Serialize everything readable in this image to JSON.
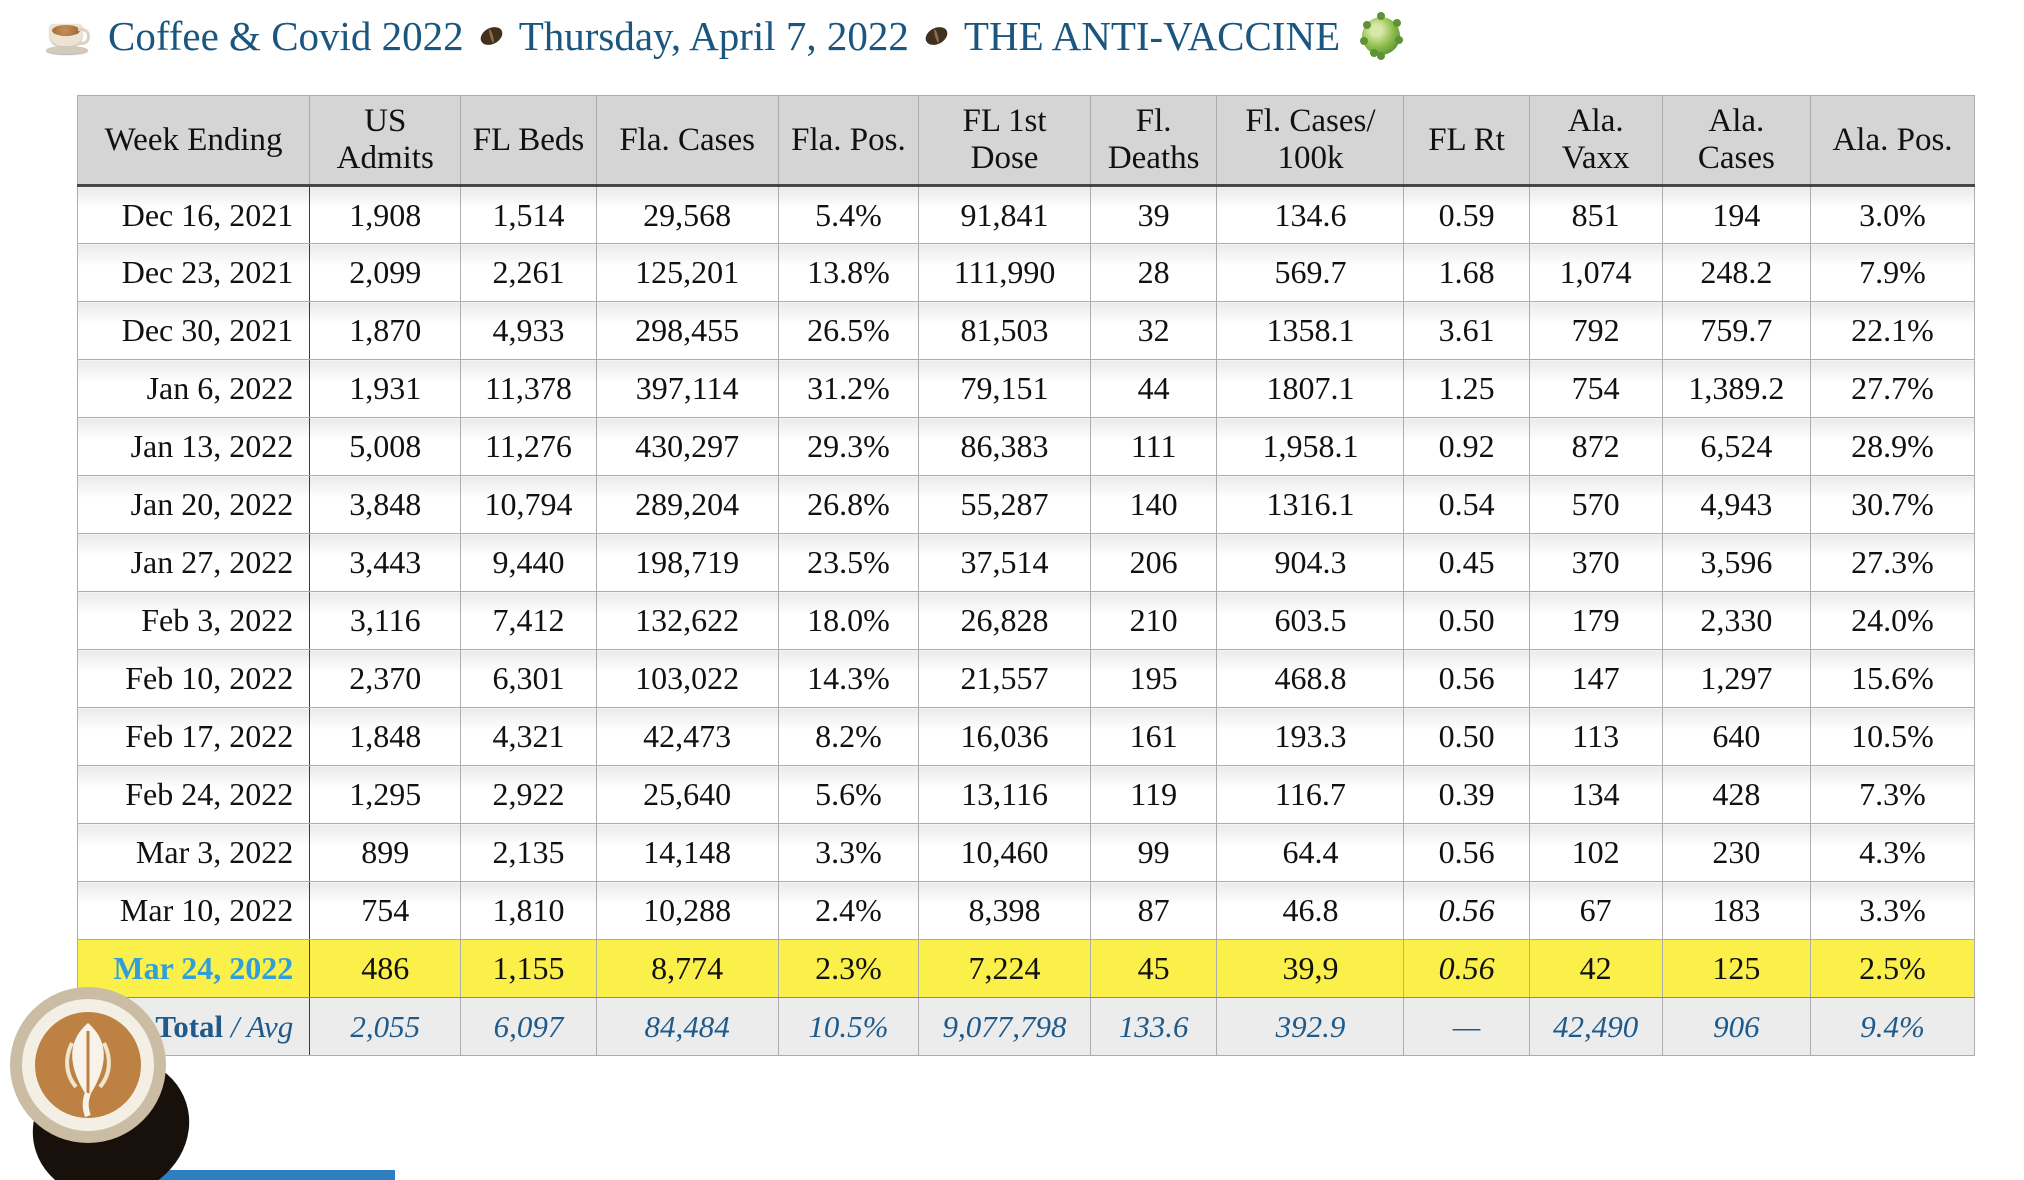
{
  "title": {
    "segments": [
      "Coffee & Covid 2022",
      "Thursday, April 7, 2022",
      "THE ANTI-VACCINE"
    ],
    "leading_icon": "coffee-cup-icon",
    "separator_icon": "coffee-bean-icon",
    "trailing_icon": "virus-icon"
  },
  "colors": {
    "title_text": "#1A567F",
    "header_bg": "#D5D5D5",
    "highlight_row_bg": "#FBEF4A",
    "highlight_date_text": "#2E9FDA",
    "total_row_bg": "#ECECEC",
    "total_row_text": "#1E5B8C"
  },
  "table": {
    "columns": [
      "Week Ending",
      "US\nAdmits",
      "FL Beds",
      "Fla. Cases",
      "Fla. Pos.",
      "FL 1st\nDose",
      "Fl.\nDeaths",
      "Fl. Cases/\n100k",
      "FL Rt",
      "Ala.\nVaxx",
      "Ala.\nCases",
      "Ala. Pos."
    ],
    "rows": [
      {
        "cells": [
          "Dec 16, 2021",
          "1,908",
          "1,514",
          "29,568",
          "5.4%",
          "91,841",
          "39",
          "134.6",
          "0.59",
          "851",
          "194",
          "3.0%"
        ],
        "highlight": false,
        "rt_italic": false
      },
      {
        "cells": [
          "Dec 23, 2021",
          "2,099",
          "2,261",
          "125,201",
          "13.8%",
          "111,990",
          "28",
          "569.7",
          "1.68",
          "1,074",
          "248.2",
          "7.9%"
        ],
        "highlight": false,
        "rt_italic": false
      },
      {
        "cells": [
          "Dec 30, 2021",
          "1,870",
          "4,933",
          "298,455",
          "26.5%",
          "81,503",
          "32",
          "1358.1",
          "3.61",
          "792",
          "759.7",
          "22.1%"
        ],
        "highlight": false,
        "rt_italic": false
      },
      {
        "cells": [
          "Jan 6, 2022",
          "1,931",
          "11,378",
          "397,114",
          "31.2%",
          "79,151",
          "44",
          "1807.1",
          "1.25",
          "754",
          "1,389.2",
          "27.7%"
        ],
        "highlight": false,
        "rt_italic": false
      },
      {
        "cells": [
          "Jan 13, 2022",
          "5,008",
          "11,276",
          "430,297",
          "29.3%",
          "86,383",
          "111",
          "1,958.1",
          "0.92",
          "872",
          "6,524",
          "28.9%"
        ],
        "highlight": false,
        "rt_italic": false
      },
      {
        "cells": [
          "Jan 20, 2022",
          "3,848",
          "10,794",
          "289,204",
          "26.8%",
          "55,287",
          "140",
          "1316.1",
          "0.54",
          "570",
          "4,943",
          "30.7%"
        ],
        "highlight": false,
        "rt_italic": false
      },
      {
        "cells": [
          "Jan 27, 2022",
          "3,443",
          "9,440",
          "198,719",
          "23.5%",
          "37,514",
          "206",
          "904.3",
          "0.45",
          "370",
          "3,596",
          "27.3%"
        ],
        "highlight": false,
        "rt_italic": false
      },
      {
        "cells": [
          "Feb 3, 2022",
          "3,116",
          "7,412",
          "132,622",
          "18.0%",
          "26,828",
          "210",
          "603.5",
          "0.50",
          "179",
          "2,330",
          "24.0%"
        ],
        "highlight": false,
        "rt_italic": false
      },
      {
        "cells": [
          "Feb 10, 2022",
          "2,370",
          "6,301",
          "103,022",
          "14.3%",
          "21,557",
          "195",
          "468.8",
          "0.56",
          "147",
          "1,297",
          "15.6%"
        ],
        "highlight": false,
        "rt_italic": false
      },
      {
        "cells": [
          "Feb 17, 2022",
          "1,848",
          "4,321",
          "42,473",
          "8.2%",
          "16,036",
          "161",
          "193.3",
          "0.50",
          "113",
          "640",
          "10.5%"
        ],
        "highlight": false,
        "rt_italic": false
      },
      {
        "cells": [
          "Feb 24, 2022",
          "1,295",
          "2,922",
          "25,640",
          "5.6%",
          "13,116",
          "119",
          "116.7",
          "0.39",
          "134",
          "428",
          "7.3%"
        ],
        "highlight": false,
        "rt_italic": false
      },
      {
        "cells": [
          "Mar 3, 2022",
          "899",
          "2,135",
          "14,148",
          "3.3%",
          "10,460",
          "99",
          "64.4",
          "0.56",
          "102",
          "230",
          "4.3%"
        ],
        "highlight": false,
        "rt_italic": false
      },
      {
        "cells": [
          "Mar 10, 2022",
          "754",
          "1,810",
          "10,288",
          "2.4%",
          "8,398",
          "87",
          "46.8",
          "0.56",
          "67",
          "183",
          "3.3%"
        ],
        "highlight": false,
        "rt_italic": true
      },
      {
        "cells": [
          "Mar 24, 2022",
          "486",
          "1,155",
          "8,774",
          "2.3%",
          "7,224",
          "45",
          "39,9",
          "0.56",
          "42",
          "125",
          "2.5%"
        ],
        "highlight": true,
        "rt_italic": true
      }
    ],
    "total_row": {
      "label_bold": "Total",
      "label_rest": " / Avg",
      "cells": [
        "2,055",
        "6,097",
        "84,484",
        "10.5%",
        "9,077,798",
        "133.6",
        "392.9",
        "—",
        "42,490",
        "906",
        "9.4%"
      ]
    }
  },
  "decorations": {
    "bottom_left_photo": "latte-cup-photo",
    "bottom_strip": "blue-strip"
  }
}
